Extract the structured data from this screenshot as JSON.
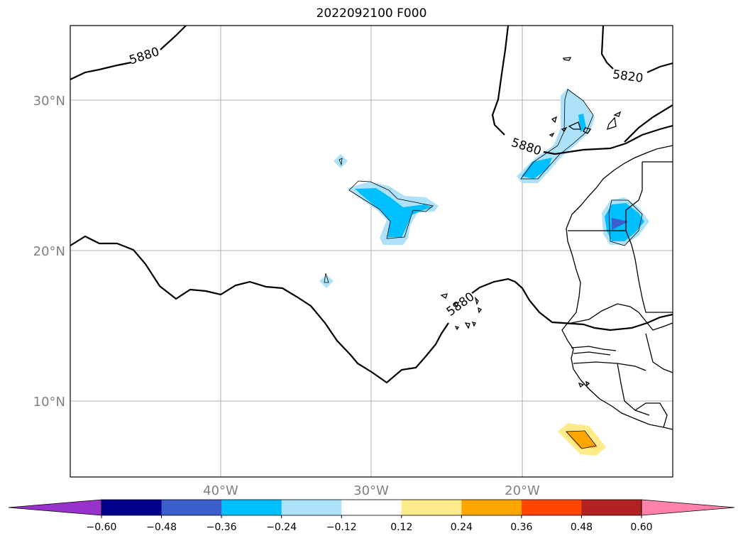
{
  "title": "2022092100 F000",
  "lat_labels": [
    "30°N",
    "20°N",
    "10°N"
  ],
  "lon_labels": [
    "40°W",
    "30°W",
    "20°W"
  ],
  "contour_labels": [
    "5880",
    "5820",
    "5880",
    "5880"
  ],
  "colorbar": {
    "colors": [
      "#9932CC",
      "#00008B",
      "#3A5FCD",
      "#00BFFF",
      "#ADE2FA",
      "#FFFFFF",
      "#FFEB8A",
      "#FFA500",
      "#FF4500",
      "#B22222",
      "#FF82AB"
    ],
    "ticks": [
      "−0.60",
      "−0.48",
      "−0.36",
      "−0.24",
      "−0.12",
      "0.12",
      "0.24",
      "0.36",
      "0.48",
      "0.60"
    ]
  }
}
